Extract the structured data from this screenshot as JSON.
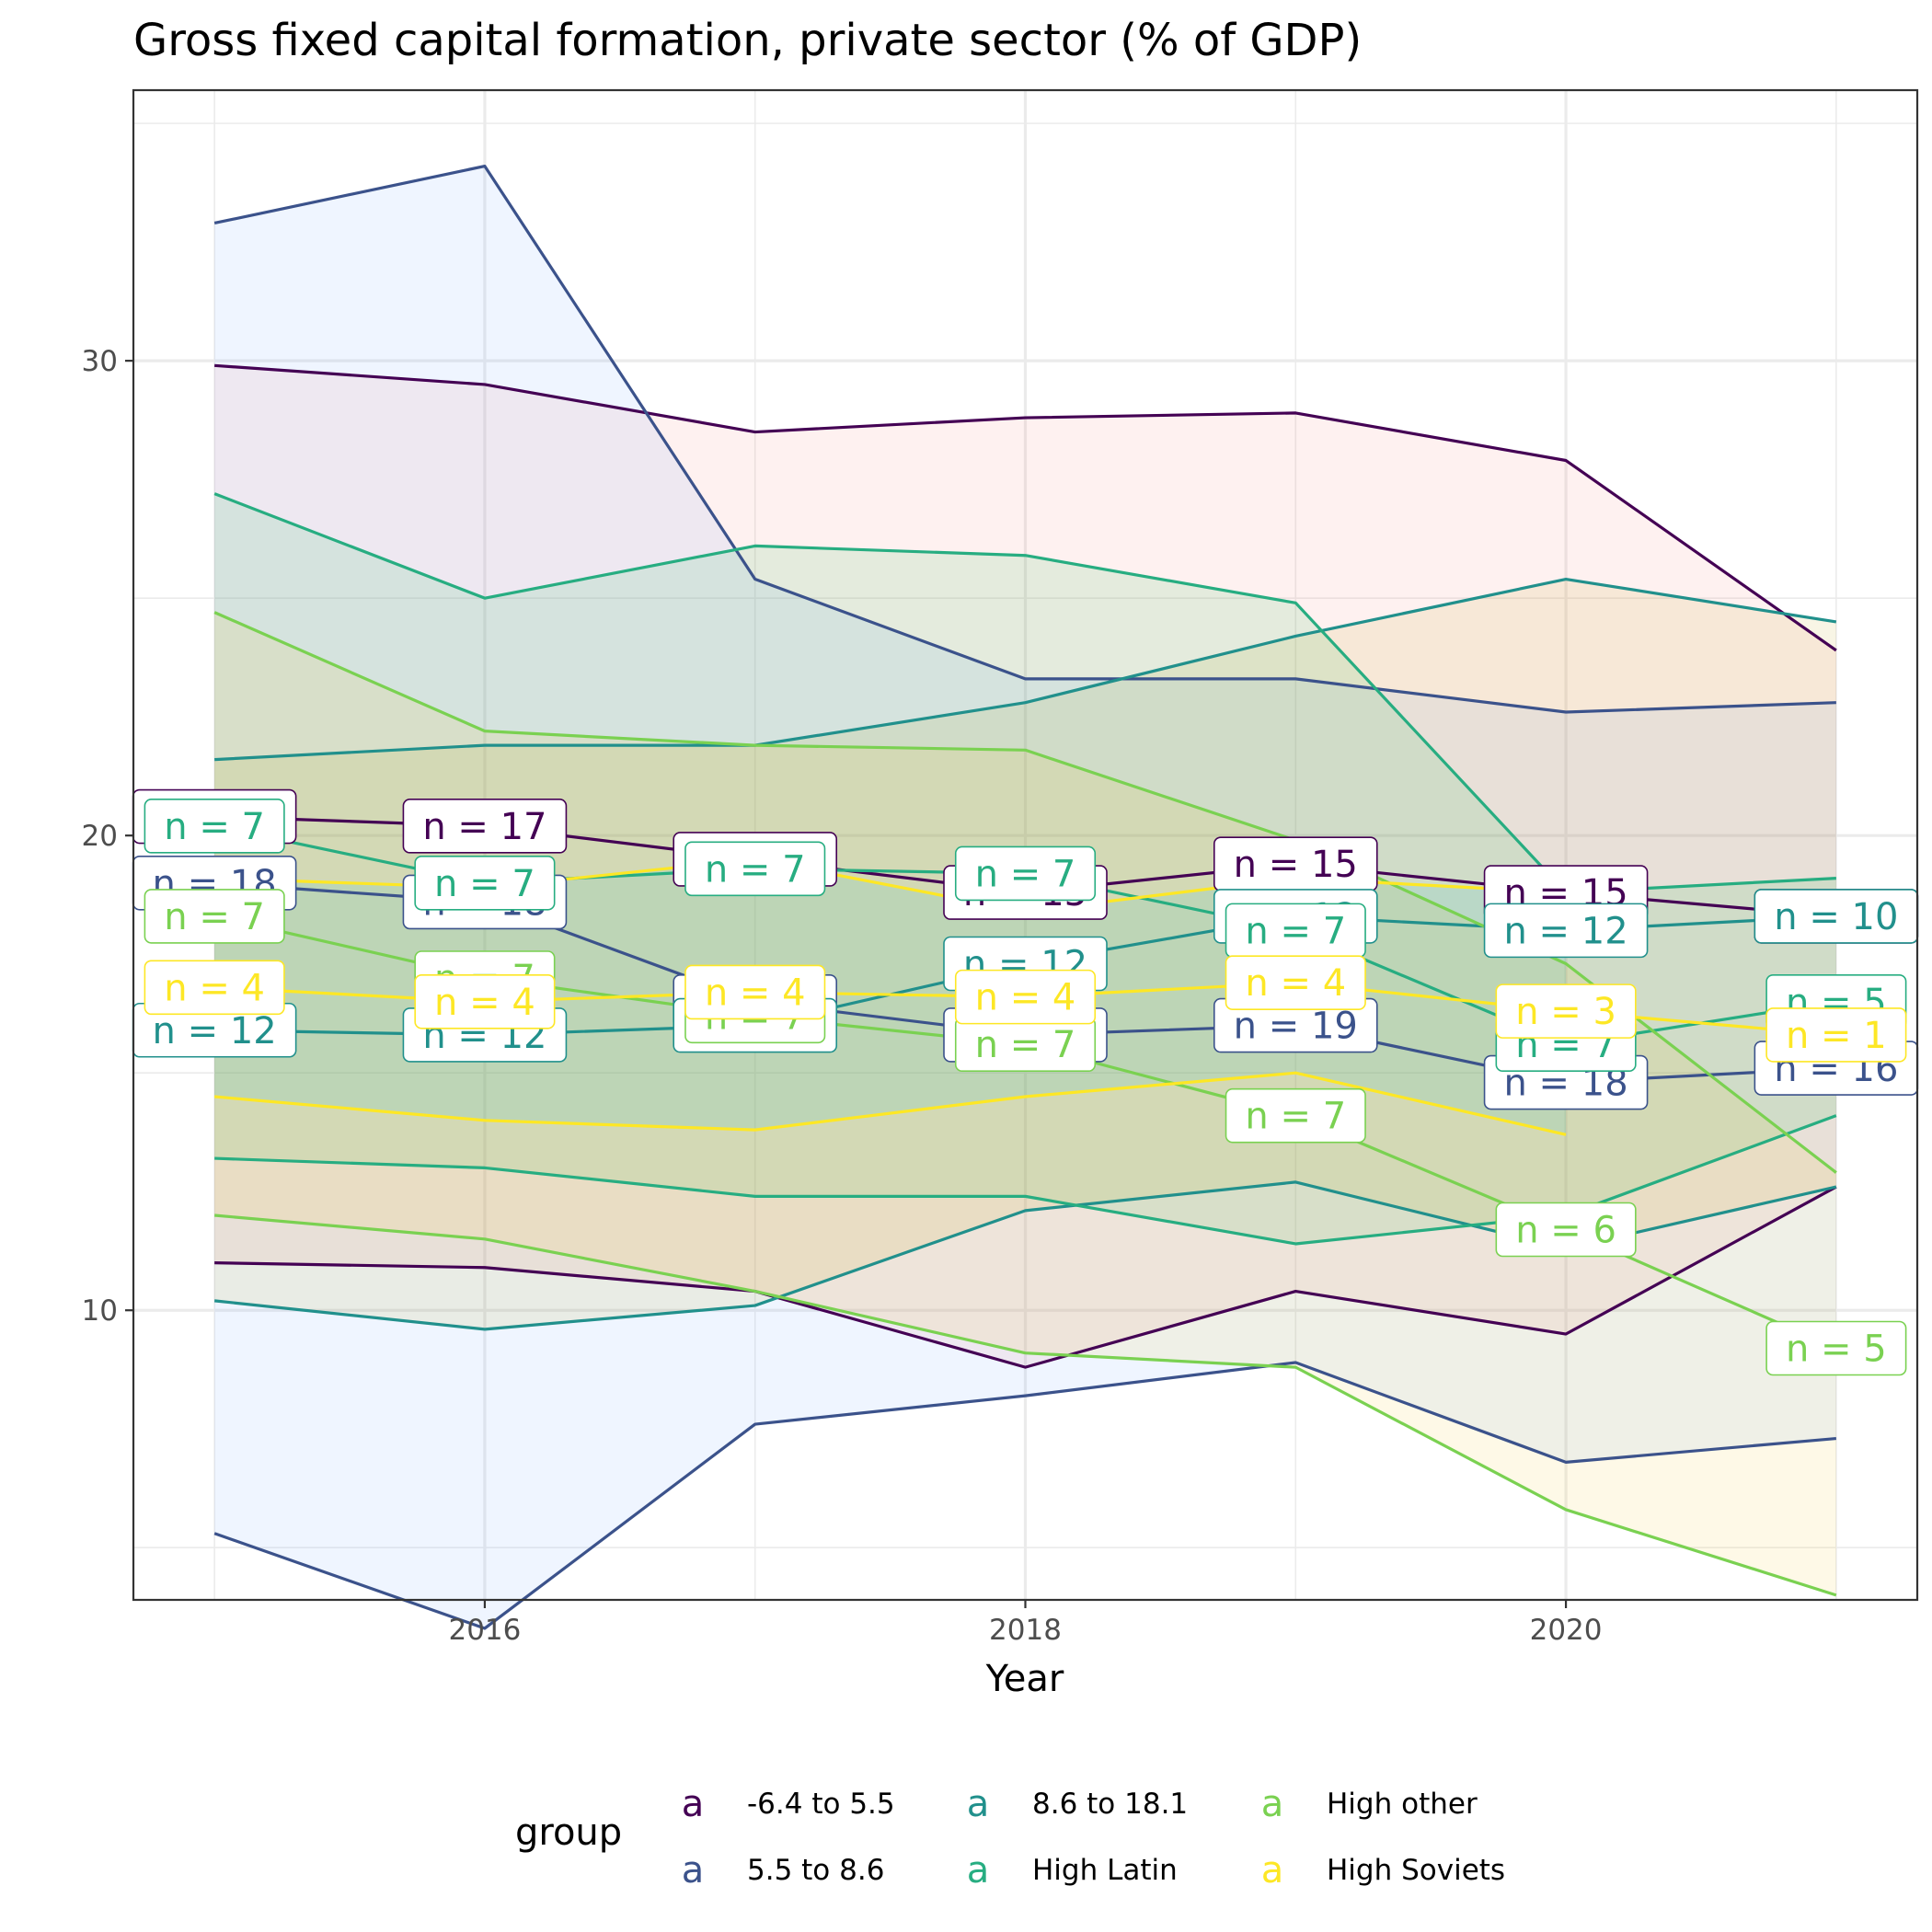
{
  "chart_data": {
    "type": "line",
    "title": "Gross fixed capital formation, private sector (% of GDP)",
    "xlabel": "Year",
    "ylabel": "",
    "x": [
      2015,
      2016,
      2017,
      2018,
      2019,
      2020,
      2021
    ],
    "xticks": [
      2016,
      2018,
      2020
    ],
    "ylim": [
      3.9,
      35.7
    ],
    "yticks": [
      10,
      20,
      30
    ],
    "grid": true,
    "legend_position": "bottom",
    "legend": {
      "title": "group",
      "key_glyph": "a"
    },
    "series": [
      {
        "name": "-6.4 to 5.5",
        "color": "#440154",
        "fill": "#F8766D",
        "upper": [
          29.9,
          29.5,
          28.5,
          28.8,
          28.9,
          27.9,
          23.9
        ],
        "mean": [
          20.4,
          20.2,
          19.5,
          18.8,
          19.4,
          18.8,
          18.3
        ],
        "lower": [
          11.0,
          10.9,
          10.4,
          8.8,
          10.4,
          9.5,
          12.6
        ],
        "labels": [
          "n = 17",
          "n = 17",
          "n = 17",
          "n = 15",
          "n = 15",
          "n = 15",
          "n = 10"
        ]
      },
      {
        "name": "5.5 to 8.6",
        "color": "#3B528B",
        "fill": "#619CFF",
        "upper": [
          32.9,
          34.1,
          25.4,
          23.3,
          23.3,
          22.6,
          22.8
        ],
        "mean": [
          19.0,
          18.6,
          16.5,
          15.8,
          16.0,
          14.8,
          15.1
        ],
        "lower": [
          5.3,
          3.3,
          7.6,
          8.2,
          8.9,
          6.8,
          7.3
        ],
        "labels": [
          "n = 18",
          "n = 18",
          "n = 18",
          "n = 18",
          "n = 19",
          "n = 18",
          "n = 16"
        ]
      },
      {
        "name": "8.6 to 18.1",
        "color": "#21908C",
        "fill": "#B79F00",
        "upper": [
          21.6,
          21.9,
          21.9,
          22.8,
          24.2,
          25.4,
          24.5
        ],
        "mean": [
          15.9,
          15.8,
          16.0,
          17.3,
          18.3,
          18.0,
          18.3
        ],
        "lower": [
          10.2,
          9.6,
          10.1,
          12.1,
          12.7,
          11.3,
          12.6
        ],
        "labels": [
          "n = 12",
          "n = 12",
          "n = 12",
          "n = 12",
          "n = 12",
          "n = 12",
          "n = 10"
        ]
      },
      {
        "name": "High Latin",
        "color": "#27AD81",
        "fill": "#00BA38",
        "upper": [
          27.2,
          25.0,
          26.1,
          25.9,
          24.9,
          18.8,
          19.1
        ],
        "mean": [
          20.2,
          19.0,
          19.3,
          19.2,
          18.0,
          15.6,
          16.5
        ],
        "lower": [
          13.2,
          13.0,
          12.4,
          12.4,
          11.4,
          12.0,
          14.1
        ],
        "labels": [
          "n = 7",
          "n = 7",
          "n = 7",
          "n = 7",
          "n = 7",
          "n = 7",
          "n = 5"
        ]
      },
      {
        "name": "High other",
        "color": "#7AD151",
        "fill": "#F5C710",
        "upper": [
          24.7,
          22.2,
          21.9,
          21.8,
          19.9,
          17.3,
          12.9
        ],
        "mean": [
          18.3,
          17.0,
          16.2,
          15.6,
          14.1,
          11.7,
          9.2
        ],
        "lower": [
          12.0,
          11.5,
          10.4,
          9.1,
          8.8,
          5.8,
          4.0
        ],
        "labels": [
          "n = 7",
          "n = 7",
          "n = 7",
          "n = 7",
          "n = 7",
          "n = 6",
          "n = 5"
        ]
      },
      {
        "name": "High Soviets",
        "color": "#FDE725",
        "fill": "#00BFC4",
        "upper": [
          19.1,
          18.9,
          19.5,
          18.4,
          19.1,
          18.8,
          null
        ],
        "mean": [
          16.8,
          16.5,
          16.7,
          16.6,
          16.9,
          16.3,
          15.8
        ],
        "lower": [
          14.5,
          14.0,
          13.8,
          14.5,
          15.0,
          13.7,
          null
        ],
        "labels": [
          "n = 4",
          "n = 4",
          "n = 4",
          "n = 4",
          "n = 4",
          "n = 3",
          "n = 1"
        ]
      }
    ]
  }
}
